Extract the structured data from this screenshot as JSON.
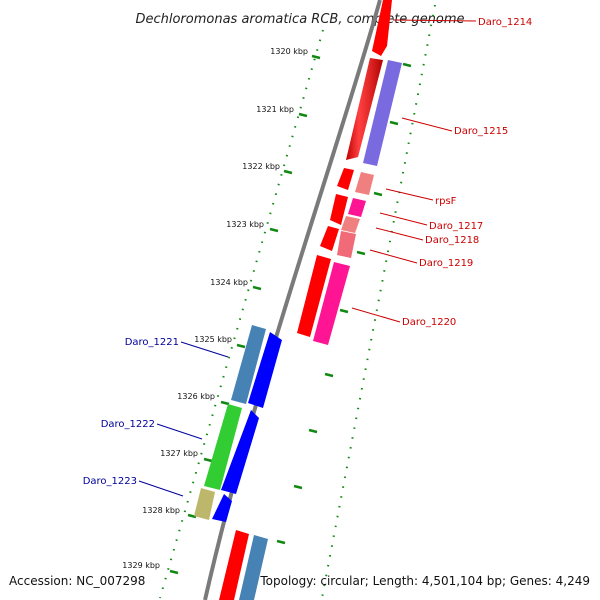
{
  "title": "Dechloromonas aromatica RCB, complete genome",
  "footer": {
    "accession": "Accession: NC_007298",
    "summary": "Topology: circular; Length: 4,501,104 bp; Genes: 4,249"
  },
  "colors": {
    "backbone": "#7a7a7a",
    "tick": "#118811",
    "forward_label": "#cc0000",
    "reverse_label": "#000099"
  },
  "ticks": [
    "1320 kbp",
    "1321 kbp",
    "1322 kbp",
    "1323 kbp",
    "1324 kbp",
    "1325 kbp",
    "1326 kbp",
    "1327 kbp",
    "1328 kbp",
    "1329 kbp"
  ],
  "genes": {
    "forward": [
      {
        "label": "Daro_1214",
        "color": "#ff0000"
      },
      {
        "label": "Daro_1215",
        "color": "#7a6ae0"
      },
      {
        "label": "rpsF",
        "color": "#f08080"
      },
      {
        "label": "Daro_1217",
        "color": "#ff1493"
      },
      {
        "label": "Daro_1218",
        "color": "#f08080"
      },
      {
        "label": "Daro_1219",
        "color": "#ff0000"
      },
      {
        "label": "Daro_1220",
        "color": "#ff1493"
      }
    ],
    "reverse": [
      {
        "label": "Daro_1221",
        "color": "#4682b4"
      },
      {
        "label": "Daro_1222",
        "color": "#32cd32"
      },
      {
        "label": "Daro_1223",
        "color": "#bdb76b"
      }
    ]
  }
}
